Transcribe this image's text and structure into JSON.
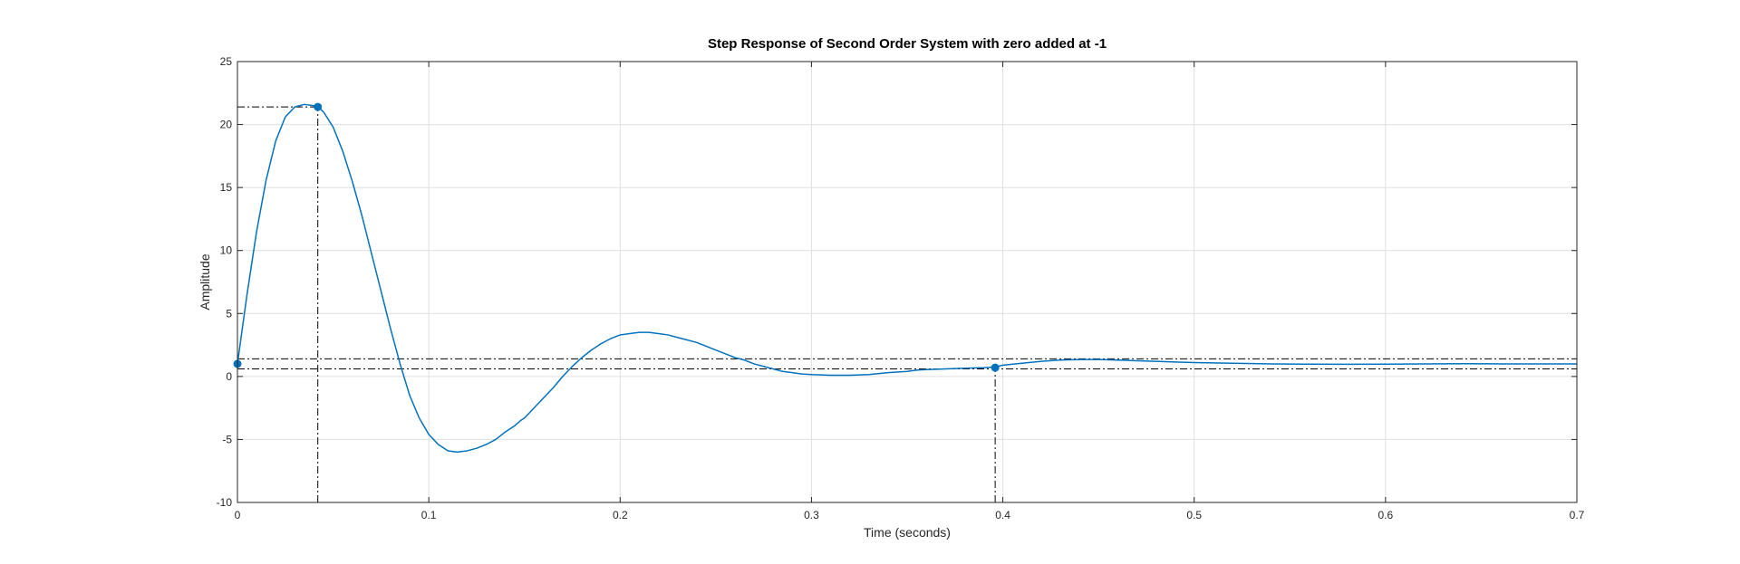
{
  "chart_data": {
    "type": "line",
    "title": "Step Response of Second Order System with zero added at -1",
    "xlabel": "Time (seconds)",
    "ylabel": "Amplitude",
    "xlim": [
      0,
      0.7
    ],
    "ylim": [
      -10,
      25
    ],
    "x_ticks": [
      "0",
      "0.1",
      "0.2",
      "0.3",
      "0.4",
      "0.5",
      "0.6",
      "0.7"
    ],
    "y_ticks": [
      "-10",
      "-5",
      "0",
      "5",
      "10",
      "15",
      "20",
      "25"
    ],
    "grid": true,
    "series": [
      {
        "color": "#0072BD",
        "x": [
          0,
          0.005,
          0.01,
          0.015,
          0.02,
          0.025,
          0.03,
          0.035,
          0.04,
          0.042,
          0.045,
          0.05,
          0.055,
          0.06,
          0.065,
          0.07,
          0.075,
          0.08,
          0.085,
          0.09,
          0.095,
          0.1,
          0.105,
          0.11,
          0.115,
          0.12,
          0.125,
          0.13,
          0.135,
          0.14,
          0.145,
          0.148,
          0.15,
          0.155,
          0.16,
          0.165,
          0.17,
          0.175,
          0.18,
          0.185,
          0.19,
          0.195,
          0.2,
          0.205,
          0.21,
          0.215,
          0.22,
          0.225,
          0.23,
          0.235,
          0.24,
          0.245,
          0.25,
          0.255,
          0.26,
          0.265,
          0.27,
          0.275,
          0.28,
          0.285,
          0.29,
          0.295,
          0.3,
          0.31,
          0.32,
          0.33,
          0.34,
          0.35,
          0.355,
          0.36,
          0.37,
          0.38,
          0.39,
          0.396,
          0.4,
          0.41,
          0.42,
          0.43,
          0.44,
          0.45,
          0.46,
          0.47,
          0.48,
          0.49,
          0.5,
          0.52,
          0.54,
          0.56,
          0.58,
          0.6,
          0.62,
          0.64,
          0.66,
          0.68,
          0.7
        ],
        "y": [
          1.0,
          6.5,
          11.5,
          15.6,
          18.7,
          20.6,
          21.4,
          21.6,
          21.5,
          21.4,
          21.0,
          19.8,
          17.9,
          15.5,
          12.8,
          9.8,
          6.8,
          3.8,
          1.0,
          -1.5,
          -3.3,
          -4.6,
          -5.4,
          -5.9,
          -6.0,
          -5.9,
          -5.7,
          -5.4,
          -5.0,
          -4.4,
          -3.9,
          -3.5,
          -3.3,
          -2.5,
          -1.7,
          -0.9,
          0.0,
          0.8,
          1.5,
          2.1,
          2.6,
          3.0,
          3.3,
          3.4,
          3.5,
          3.5,
          3.4,
          3.3,
          3.1,
          2.9,
          2.7,
          2.4,
          2.1,
          1.8,
          1.5,
          1.3,
          1.0,
          0.8,
          0.6,
          0.4,
          0.3,
          0.2,
          0.15,
          0.1,
          0.1,
          0.15,
          0.3,
          0.4,
          0.5,
          0.55,
          0.6,
          0.65,
          0.7,
          0.75,
          0.9,
          1.05,
          1.2,
          1.3,
          1.35,
          1.35,
          1.3,
          1.25,
          1.2,
          1.15,
          1.1,
          1.05,
          1.0,
          0.98,
          0.97,
          0.98,
          1.0,
          1.01,
          1.0,
          1.0,
          1.0
        ]
      }
    ],
    "markers": [
      {
        "x": 0.0,
        "y": 1.0
      },
      {
        "x": 0.042,
        "y": 21.4
      },
      {
        "x": 0.396,
        "y": 0.7
      }
    ],
    "reference_lines": {
      "horizontal": [
        1.4,
        0.6
      ],
      "vertical": [
        {
          "x": 0.0,
          "y_top": 1.0
        },
        {
          "x": 0.042,
          "y_top": 21.4
        },
        {
          "x": 0.396,
          "y_top": 0.7
        }
      ],
      "peak_horizontal": {
        "y": 21.4,
        "x_end": 0.042
      }
    }
  }
}
